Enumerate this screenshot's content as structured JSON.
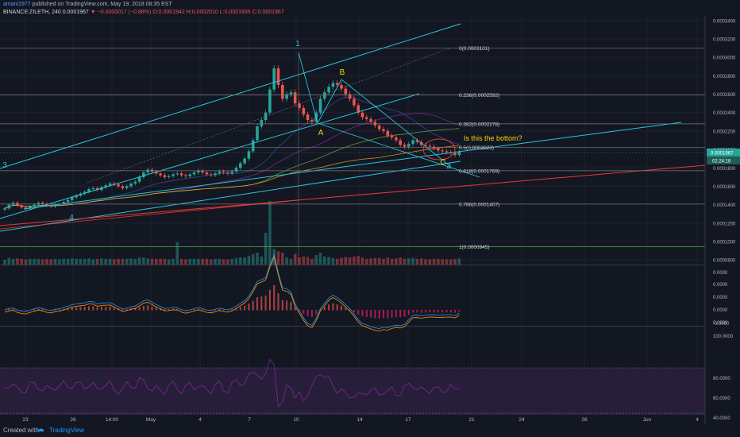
{
  "header": {
    "author": "amani1977",
    "published_text": "published on TradingView.com, May 19, 2018 08:35 EST",
    "symbol_line": "BINANCE:ZILETH, 240",
    "price_now": "0.0001967",
    "change_text": "▼ −0.0000017 (−0.88%)",
    "ohlc_text": "O:0.0001942 H:0.0002010 L:0.0001935 C:0.0001967"
  },
  "footer": {
    "created_with": "Created with",
    "brand": "TradingView"
  },
  "colors": {
    "bg": "#131722",
    "up": "#26a69a",
    "down": "#ef5350",
    "channel": "#26c6da",
    "accent": "#f5d20a",
    "axis_label_bg": "#26a69a"
  },
  "chart_data": {
    "type": "candlestick",
    "x_tick_labels": [
      "23",
      "26",
      "14:00",
      "May",
      "4",
      "7",
      "10",
      "14",
      "17",
      "21",
      "24",
      "28",
      "Jun",
      "4"
    ],
    "price_axis": {
      "ticks": [
        "0.0003400",
        "0.0003200",
        "0.0003000",
        "0.0002800",
        "0.0002600",
        "0.0002400",
        "0.0002200",
        "0.0002000",
        "0.0001800",
        "0.0001600",
        "0.0001400",
        "0.0001200",
        "0.0001000",
        "0.0000800"
      ],
      "range": [
        7.5e-05,
        0.000345
      ],
      "current_label": "0.0001967",
      "countdown_label": "02:24:18"
    },
    "fib_levels": [
      {
        "label": "0(0.0003101)",
        "value": 0.0003101
      },
      {
        "label": "0.236(0.0002592)",
        "value": 0.0002592
      },
      {
        "label": "0.382(0.0002278)",
        "value": 0.0002278
      },
      {
        "label": "0.5(0.0002023)",
        "value": 0.0002023
      },
      {
        "label": "0.618(0.0001769)",
        "value": 0.0001769
      },
      {
        "label": "0.786(0.0001407)",
        "value": 0.0001407
      },
      {
        "label": "1(0.0000945)",
        "value": 9.45e-05
      }
    ],
    "wave_labels": [
      "1",
      "2",
      "3",
      "4",
      "A",
      "B",
      "C"
    ],
    "annotation": "Is this the bottom?",
    "macd_axis_ticks": [
      "0.0000",
      "0.0000",
      "0.0000",
      "0.0000",
      "0.0000",
      "-0.0000"
    ],
    "rsi_axis_ticks": [
      "100.0000",
      "80.0000",
      "60.0000",
      "40.0000"
    ],
    "close_series": [
      0.000136,
      0.00014,
      0.000142,
      0.000139,
      0.000137,
      0.000136,
      0.000138,
      0.00014,
      0.000142,
      0.000141,
      0.000139,
      0.000138,
      0.00014,
      0.000141,
      0.000143,
      0.000145,
      0.000148,
      0.00015,
      0.000152,
      0.000154,
      0.000157,
      0.000158,
      0.000156,
      0.000159,
      0.000161,
      0.000163,
      0.000162,
      0.00016,
      0.000158,
      0.00016,
      0.000163,
      0.000165,
      0.00017,
      0.000175,
      0.000178,
      0.000176,
      0.000174,
      0.000172,
      0.00017,
      0.000171,
      0.000173,
      0.000174,
      0.000172,
      0.000171,
      0.000173,
      0.000175,
      0.000177,
      0.000175,
      0.000173,
      0.000172,
      0.000174,
      0.000176,
      0.000175,
      0.000174,
      0.000176,
      0.00018,
      0.000185,
      0.00019,
      0.000198,
      0.00021,
      0.000225,
      0.000232,
      0.00024,
      0.000265,
      0.000288,
      0.00027,
      0.000255,
      0.00026,
      0.000262,
      0.00025,
      0.000245,
      0.000238,
      0.000232,
      0.00023,
      0.00024,
      0.000255,
      0.000262,
      0.000268,
      0.000272,
      0.00027,
      0.000266,
      0.00026,
      0.000255,
      0.000248,
      0.00024,
      0.000235,
      0.000233,
      0.00023,
      0.000226,
      0.000222,
      0.00022,
      0.000215,
      0.000213,
      0.00021,
      0.000205,
      0.000203,
      0.000206,
      0.00021,
      0.000208,
      0.000205,
      0.000204,
      0.000203,
      0.000201,
      0.000199,
      0.000198,
      0.000197,
      0.000196,
      0.000194,
      0.000197
    ]
  }
}
